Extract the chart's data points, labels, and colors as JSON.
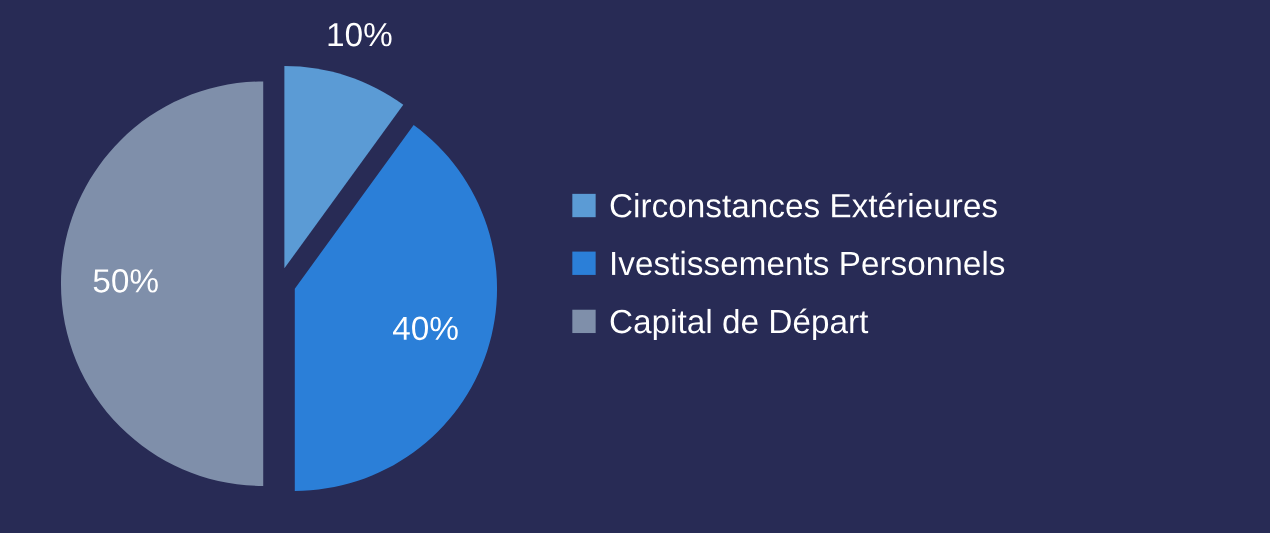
{
  "chart_data": {
    "type": "pie",
    "categories": [
      "Circonstances Extérieures",
      "Ivestissements Personnels",
      "Capital de Départ"
    ],
    "values": [
      10,
      40,
      50
    ],
    "colors": [
      "#5b9bd5",
      "#2b7fd8",
      "#7f8faa"
    ],
    "value_labels": [
      "10%",
      "40%",
      "50%"
    ],
    "legend": "right"
  }
}
